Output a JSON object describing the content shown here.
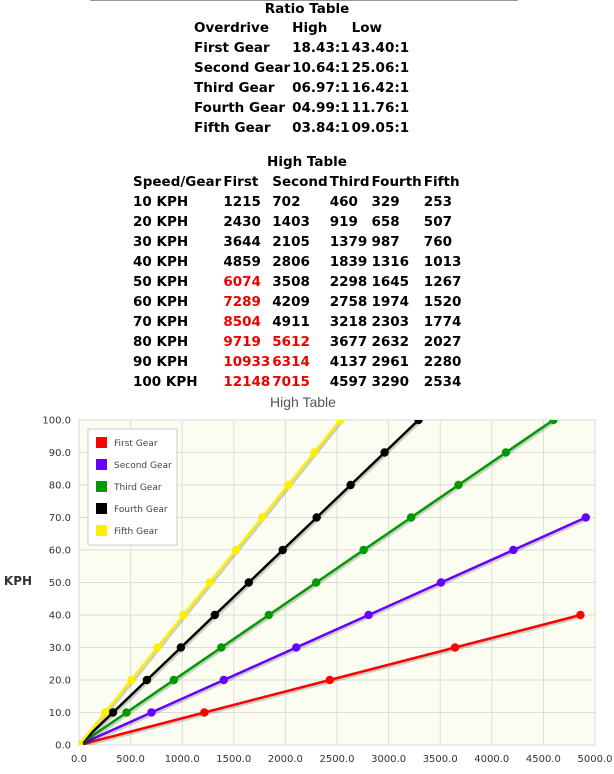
{
  "ratio_table": {
    "title": "Ratio Table",
    "headers": [
      "Overdrive",
      "High",
      "Low"
    ],
    "rows": [
      [
        "First Gear",
        "18.43:1",
        "43.40:1"
      ],
      [
        "Second Gear",
        "10.64:1",
        "25.06:1"
      ],
      [
        "Third Gear",
        "06.97:1",
        "16.42:1"
      ],
      [
        "Fourth Gear",
        "04.99:1",
        "11.76:1"
      ],
      [
        "Fifth Gear",
        "03.84:1",
        "09.05:1"
      ]
    ]
  },
  "high_table": {
    "title": "High Table",
    "headers": [
      "Speed/Gear",
      "First",
      "Second",
      "Third",
      "Fourth",
      "Fifth"
    ],
    "rows": [
      [
        "10 KPH",
        "1215",
        "702",
        "460",
        "329",
        "253"
      ],
      [
        "20 KPH",
        "2430",
        "1403",
        "919",
        "658",
        "507"
      ],
      [
        "30 KPH",
        "3644",
        "2105",
        "1379",
        "987",
        "760"
      ],
      [
        "40 KPH",
        "4859",
        "2806",
        "1839",
        "1316",
        "1013"
      ],
      [
        "50 KPH",
        "6074",
        "3508",
        "2298",
        "1645",
        "1267"
      ],
      [
        "60 KPH",
        "7289",
        "4209",
        "2758",
        "1974",
        "1520"
      ],
      [
        "70 KPH",
        "8504",
        "4911",
        "3218",
        "2303",
        "1774"
      ],
      [
        "80 KPH",
        "9719",
        "5612",
        "3677",
        "2632",
        "2027"
      ],
      [
        "90 KPH",
        "10933",
        "6314",
        "4137",
        "2961",
        "2280"
      ],
      [
        "100 KPH",
        "12148",
        "7015",
        "4597",
        "3290",
        "2534"
      ]
    ],
    "red_cells": [
      [
        4,
        1
      ],
      [
        5,
        1
      ],
      [
        6,
        1
      ],
      [
        7,
        1
      ],
      [
        7,
        2
      ],
      [
        8,
        1
      ],
      [
        8,
        2
      ],
      [
        9,
        1
      ],
      [
        9,
        2
      ]
    ],
    "red_color": "#ee0000"
  },
  "chart_data": {
    "type": "line",
    "title": "High Table",
    "xlabel": "",
    "ylabel": "KPH",
    "xlim": [
      0,
      5000
    ],
    "ylim": [
      0,
      100
    ],
    "xticks": [
      "0.0",
      "500.0",
      "1000.0",
      "1500.0",
      "2000.0",
      "2500.0",
      "3000.0",
      "3500.0",
      "4000.0",
      "4500.0",
      "5000.0"
    ],
    "yticks": [
      "0.0",
      "10.0",
      "20.0",
      "30.0",
      "40.0",
      "50.0",
      "60.0",
      "70.0",
      "80.0",
      "90.0",
      "100.0"
    ],
    "grid": true,
    "legend_position": "top-left",
    "background": "#fbfdf0",
    "series": [
      {
        "name": "First Gear",
        "color": "#ff0000",
        "points": [
          [
            0,
            0
          ],
          [
            1215,
            10
          ],
          [
            2430,
            20
          ],
          [
            3644,
            30
          ],
          [
            4859,
            40
          ]
        ]
      },
      {
        "name": "Second Gear",
        "color": "#6600ff",
        "points": [
          [
            0,
            0
          ],
          [
            702,
            10
          ],
          [
            1403,
            20
          ],
          [
            2105,
            30
          ],
          [
            2806,
            40
          ],
          [
            3508,
            50
          ],
          [
            4209,
            60
          ],
          [
            4911,
            70
          ]
        ]
      },
      {
        "name": "Third Gear",
        "color": "#009900",
        "points": [
          [
            0,
            0
          ],
          [
            460,
            10
          ],
          [
            919,
            20
          ],
          [
            1379,
            30
          ],
          [
            1839,
            40
          ],
          [
            2298,
            50
          ],
          [
            2758,
            60
          ],
          [
            3218,
            70
          ],
          [
            3677,
            80
          ],
          [
            4137,
            90
          ],
          [
            4597,
            100
          ]
        ]
      },
      {
        "name": "Fourth Gear",
        "color": "#000000",
        "points": [
          [
            0,
            0
          ],
          [
            329,
            10
          ],
          [
            658,
            20
          ],
          [
            987,
            30
          ],
          [
            1316,
            40
          ],
          [
            1645,
            50
          ],
          [
            1974,
            60
          ],
          [
            2303,
            70
          ],
          [
            2632,
            80
          ],
          [
            2961,
            90
          ],
          [
            3290,
            100
          ]
        ]
      },
      {
        "name": "Fifth Gear",
        "color": "#ffee00",
        "points": [
          [
            0,
            0
          ],
          [
            253,
            10
          ],
          [
            507,
            20
          ],
          [
            760,
            30
          ],
          [
            1013,
            40
          ],
          [
            1267,
            50
          ],
          [
            1520,
            60
          ],
          [
            1774,
            70
          ],
          [
            2027,
            80
          ],
          [
            2280,
            90
          ],
          [
            2534,
            100
          ]
        ]
      }
    ]
  }
}
